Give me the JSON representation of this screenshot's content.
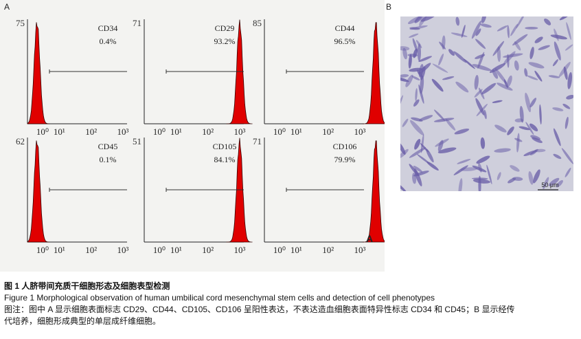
{
  "panel_labels": {
    "a": "A",
    "b": "B"
  },
  "flow_panels": [
    {
      "marker": "CD34",
      "percent": "0.4%",
      "ymax": "75",
      "peak": 0.3
    },
    {
      "marker": "CD29",
      "percent": "93.2%",
      "ymax": "71",
      "peak": 3.0
    },
    {
      "marker": "CD44",
      "percent": "96.5%",
      "ymax": "85",
      "peak": 3.5
    },
    {
      "marker": "CD45",
      "percent": "0.1%",
      "ymax": "62",
      "peak": 0.3
    },
    {
      "marker": "CD105",
      "percent": "84.1%",
      "ymax": "51",
      "peak": 3.0
    },
    {
      "marker": "CD106",
      "percent": "79.9%",
      "ymax": "71",
      "peak": 3.5
    }
  ],
  "x_ticks": [
    "10⁰",
    "10¹",
    "10²",
    "10³"
  ],
  "corner_letter": "A",
  "scale_bar_label": "50 μm",
  "caption": {
    "title_cn": "图 1   人脐带间充质干细胞形态及细胞表型检测",
    "title_en": "Figure 1    Morphological observation of human umbilical cord mesenchymal stem cells and detection of cell phenotypes",
    "note_line1": "图注：图中 A 显示细胞表面标志 CD29、CD44、CD105、CD106 呈阳性表达，不表达造血细胞表面特异性标志 CD34 和 CD45；B 显示经传",
    "note_line2": "代培养，细胞形成典型的单层成纤维细胞。"
  },
  "colors": {
    "histogram": "#e00000",
    "panel_bg": "#f3f3f1",
    "micro_bg": "#cfcfdc",
    "cells": "#6a5fa8"
  }
}
